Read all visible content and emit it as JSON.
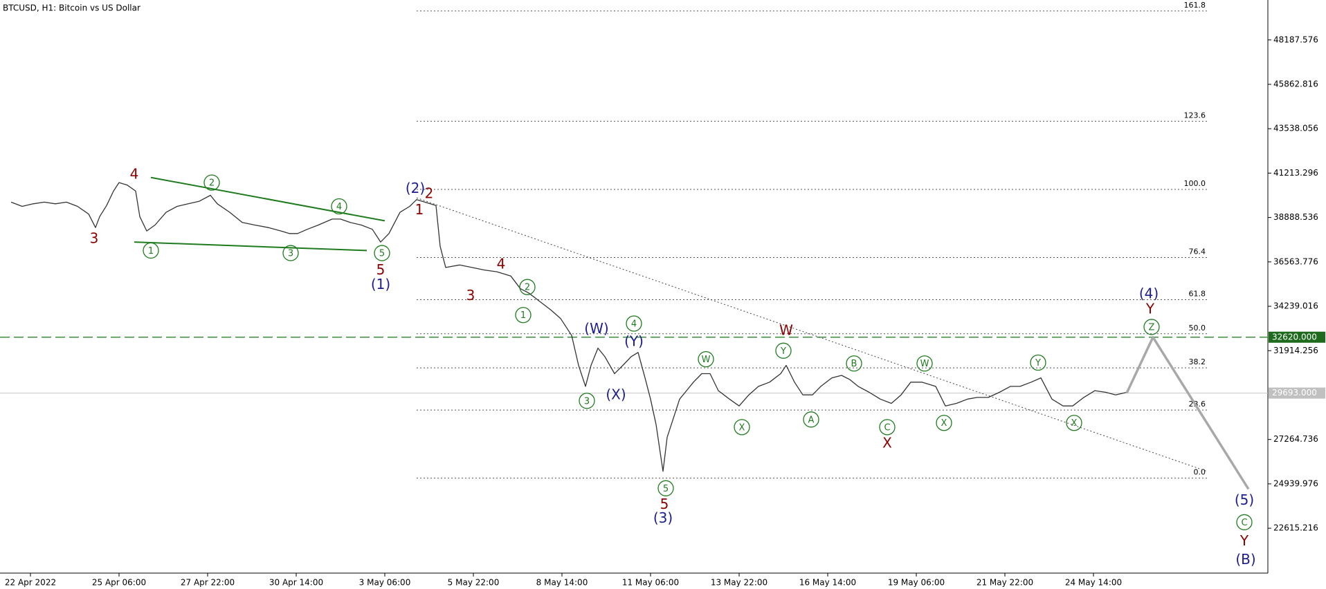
{
  "chart_data": {
    "type": "line",
    "title": "BTCUSD, H1:  Bitcoin vs US Dollar",
    "xlim": [
      -8,
      908
    ],
    "ylim": [
      20266,
      50279
    ],
    "xticks": [
      {
        "value": 14,
        "label": "22 Apr 2022"
      },
      {
        "value": 78,
        "label": "25 Apr 06:00"
      },
      {
        "value": 142,
        "label": "27 Apr 22:00"
      },
      {
        "value": 206,
        "label": "30 Apr 14:00"
      },
      {
        "value": 270,
        "label": "3 May 06:00"
      },
      {
        "value": 334,
        "label": "5 May 22:00"
      },
      {
        "value": 398,
        "label": "8 May 14:00"
      },
      {
        "value": 462,
        "label": "11 May 06:00"
      },
      {
        "value": 526,
        "label": "13 May 22:00"
      },
      {
        "value": 590,
        "label": "16 May 14:00"
      },
      {
        "value": 654,
        "label": "19 May 06:00"
      },
      {
        "value": 718,
        "label": "21 May 22:00"
      },
      {
        "value": 782,
        "label": "24 May 14:00"
      }
    ],
    "yticks": [
      48187.576,
      45862.816,
      43538.056,
      41213.296,
      38888.536,
      36563.776,
      34239.016,
      31914.256,
      27264.736,
      24939.976,
      22615.216
    ],
    "series": [
      {
        "name": "BTCUSD",
        "color": "#333333",
        "x": [
          0,
          8,
          16,
          24,
          32,
          40,
          48,
          56,
          61,
          64,
          69,
          74,
          78,
          84,
          90,
          93,
          98,
          104,
          112,
          120,
          128,
          136,
          144,
          149,
          158,
          167,
          176,
          186,
          195,
          201,
          207,
          214,
          222,
          232,
          238,
          245,
          253,
          261,
          267,
          273,
          281,
          288,
          293,
          299,
          307,
          310,
          314,
          324,
          333,
          342,
          351,
          361,
          368,
          374,
          382,
          390,
          397,
          405,
          410,
          415,
          419,
          424,
          429,
          436,
          442,
          448,
          453,
          458,
          462,
          466,
          471,
          474,
          479,
          483,
          488,
          493,
          499,
          505,
          511,
          519,
          526,
          533,
          540,
          548,
          556,
          560,
          566,
          572,
          579,
          585,
          593,
          600,
          606,
          612,
          620,
          628,
          636,
          643,
          650,
          658,
          668,
          675,
          683,
          691,
          698,
          706,
          714,
          722,
          729,
          737,
          744,
          752,
          760,
          767,
          775,
          783,
          791,
          798,
          806
        ],
        "values": [
          39694,
          39472,
          39605,
          39694,
          39605,
          39694,
          39472,
          39071,
          38360,
          38938,
          39516,
          40272,
          40717,
          40583,
          40272,
          38938,
          38182,
          38493,
          39161,
          39472,
          39605,
          39739,
          40050,
          39605,
          39161,
          38627,
          38493,
          38360,
          38182,
          38049,
          38049,
          38271,
          38493,
          38805,
          38805,
          38627,
          38493,
          38271,
          37604,
          38049,
          39161,
          39472,
          39828,
          39694,
          39516,
          37381,
          36270,
          36403,
          36270,
          36136,
          36048,
          35825,
          35158,
          34936,
          34491,
          34046,
          33601,
          32712,
          31146,
          30044,
          31146,
          32045,
          31601,
          30712,
          31146,
          31601,
          31823,
          30489,
          29377,
          28043,
          25597,
          27376,
          28488,
          29377,
          29822,
          30267,
          30712,
          30712,
          29822,
          29377,
          29021,
          29600,
          30044,
          30267,
          30712,
          31146,
          30267,
          29600,
          29600,
          30044,
          30489,
          30622,
          30400,
          30044,
          29733,
          29377,
          29155,
          29600,
          30267,
          30267,
          30044,
          29021,
          29155,
          29377,
          29466,
          29466,
          29733,
          30044,
          30044,
          30267,
          30489,
          29377,
          29021,
          29021,
          29466,
          29822,
          29733,
          29600,
          29733
        ]
      },
      {
        "name": "projection",
        "color": "#a8a8a8",
        "x": [
          806,
          825,
          894
        ],
        "values": [
          29693,
          32620,
          24663
        ]
      }
    ],
    "levels": [
      {
        "value": 32620,
        "label": "32620.000",
        "color": "#3a8f3a",
        "style": "dashed",
        "tag": "#1e6b1e"
      },
      {
        "value": 29693,
        "label": "29693.000",
        "color": "#c8c8c8",
        "style": "solid",
        "tag": "#c0c0c0"
      }
    ],
    "fibonacci": {
      "low": 25239,
      "high": 40360,
      "xrange": [
        293,
        864
      ],
      "levels": [
        161.8,
        123.6,
        {
          "value": 100,
          "label": "100.0"
        },
        76.4,
        61.8,
        {
          "value": 50,
          "label": "50.0"
        },
        38.2,
        23.6,
        {
          "value": 0,
          "label": "0.0"
        }
      ]
    },
    "lines": [
      {
        "x": [
          101,
          270
        ],
        "y": [
          40984,
          38716
        ],
        "color": "#1e7b1e",
        "style": "solid"
      },
      {
        "x": [
          89,
          257
        ],
        "y": [
          37604,
          37159
        ],
        "color": "#1e7b1e",
        "style": "solid"
      },
      {
        "x": [
          293,
          864
        ],
        "y": [
          39916,
          25597
        ],
        "color": "#444444",
        "style": "dotted"
      }
    ],
    "annotations": [
      {
        "text": "4",
        "x": 89,
        "y": 41161,
        "color": "#8b0000",
        "circled": false
      },
      {
        "text": "3",
        "x": 60,
        "y": 37782,
        "color": "#8b0000",
        "circled": false
      },
      {
        "text": "2",
        "x": 145,
        "y": 40717,
        "color": "#1e7b1e",
        "circled": true
      },
      {
        "text": "4",
        "x": 237,
        "y": 39472,
        "color": "#1e7b1e",
        "circled": true
      },
      {
        "text": "1",
        "x": 101,
        "y": 37159,
        "color": "#1e7b1e",
        "circled": true
      },
      {
        "text": "3",
        "x": 202,
        "y": 37026,
        "color": "#1e7b1e",
        "circled": true
      },
      {
        "text": "5",
        "x": 268,
        "y": 37026,
        "color": "#1e7b1e",
        "circled": true
      },
      {
        "text": "5",
        "x": 267,
        "y": 36137,
        "color": "#8b0000",
        "circled": false
      },
      {
        "text": "(1)",
        "x": 267,
        "y": 35380,
        "color": "#1c1c8c",
        "circled": false
      },
      {
        "text": "(2)",
        "x": 292,
        "y": 40406,
        "color": "#1c1c8c",
        "circled": false
      },
      {
        "text": "2",
        "x": 302,
        "y": 40139,
        "color": "#8b0000",
        "circled": false
      },
      {
        "text": "1",
        "x": 295,
        "y": 39294,
        "color": "#8b0000",
        "circled": false
      },
      {
        "text": "4",
        "x": 354,
        "y": 36448,
        "color": "#8b0000",
        "circled": false
      },
      {
        "text": "3",
        "x": 332,
        "y": 34802,
        "color": "#8b0000",
        "circled": false
      },
      {
        "text": "2",
        "x": 373,
        "y": 35247,
        "color": "#1e7b1e",
        "circled": true
      },
      {
        "text": "1",
        "x": 370,
        "y": 33780,
        "color": "#1e7b1e",
        "circled": true
      },
      {
        "text": "(W)",
        "x": 423,
        "y": 33069,
        "color": "#1c1c8c",
        "circled": false
      },
      {
        "text": "4",
        "x": 450,
        "y": 33335,
        "color": "#1e7b1e",
        "circled": true
      },
      {
        "text": "(Y)",
        "x": 450,
        "y": 32401,
        "color": "#1c1c8c",
        "circled": false
      },
      {
        "text": "(X)",
        "x": 437,
        "y": 29600,
        "color": "#1c1c8c",
        "circled": false
      },
      {
        "text": "3",
        "x": 416,
        "y": 29289,
        "color": "#1e7b1e",
        "circled": true
      },
      {
        "text": "5",
        "x": 473,
        "y": 24708,
        "color": "#1e7b1e",
        "circled": true
      },
      {
        "text": "5",
        "x": 472,
        "y": 23863,
        "color": "#8b0000",
        "circled": false
      },
      {
        "text": "(3)",
        "x": 471,
        "y": 23151,
        "color": "#1c1c8c",
        "circled": false
      },
      {
        "text": "W",
        "x": 502,
        "y": 31467,
        "color": "#1e7b1e",
        "circled": true
      },
      {
        "text": "X",
        "x": 528,
        "y": 27910,
        "color": "#1e7b1e",
        "circled": true
      },
      {
        "text": "W",
        "x": 560,
        "y": 32979,
        "color": "#8b0000",
        "circled": false
      },
      {
        "text": "Y",
        "x": 558,
        "y": 31912,
        "color": "#1e7b1e",
        "circled": true
      },
      {
        "text": "A",
        "x": 578,
        "y": 28310,
        "color": "#1e7b1e",
        "circled": true
      },
      {
        "text": "B",
        "x": 609,
        "y": 31245,
        "color": "#1e7b1e",
        "circled": true
      },
      {
        "text": "C",
        "x": 633,
        "y": 27910,
        "color": "#1e7b1e",
        "circled": true
      },
      {
        "text": "X",
        "x": 633,
        "y": 27064,
        "color": "#8b0000",
        "circled": false
      },
      {
        "text": "W",
        "x": 660,
        "y": 31245,
        "color": "#1e7b1e",
        "circled": true
      },
      {
        "text": "X",
        "x": 674,
        "y": 28132,
        "color": "#1e7b1e",
        "circled": true
      },
      {
        "text": "Y",
        "x": 742,
        "y": 31289,
        "color": "#1e7b1e",
        "circled": true
      },
      {
        "text": "X",
        "x": 768,
        "y": 28132,
        "color": "#1e7b1e",
        "circled": true
      },
      {
        "text": "(4)",
        "x": 822,
        "y": 34891,
        "color": "#1c1c8c",
        "circled": false
      },
      {
        "text": "Y",
        "x": 823,
        "y": 34091,
        "color": "#8b0000",
        "circled": false
      },
      {
        "text": "Z",
        "x": 824,
        "y": 33157,
        "color": "#1e7b1e",
        "circled": true
      },
      {
        "text": "(5)",
        "x": 891,
        "y": 24085,
        "color": "#1c1c8c",
        "circled": false
      },
      {
        "text": "C",
        "x": 891,
        "y": 22929,
        "color": "#1e7b1e",
        "circled": true
      },
      {
        "text": "Y",
        "x": 891,
        "y": 21950,
        "color": "#8b0000",
        "circled": false
      },
      {
        "text": "(B)",
        "x": 892,
        "y": 20972,
        "color": "#1c1c8c",
        "circled": false
      }
    ]
  }
}
